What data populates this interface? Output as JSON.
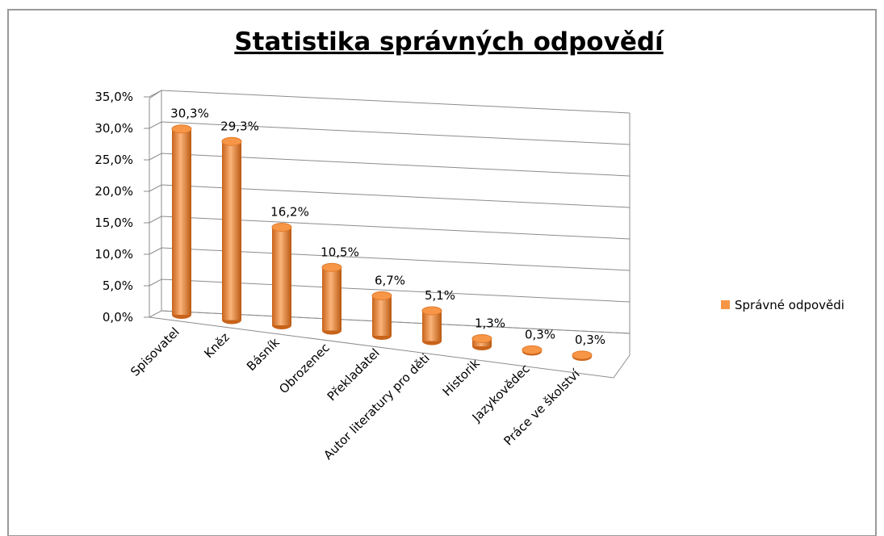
{
  "chart_data": {
    "type": "bar3d",
    "title": "Statistika správných odpovědí",
    "categories": [
      "Spisovatel",
      "Kněz",
      "Básník",
      "Obrozenec",
      "Překladatel",
      "Autor literatury pro děti",
      "Historik",
      "Jazykovědec",
      "Práce ve školství"
    ],
    "series": [
      {
        "name": "Správné odpovědi",
        "color": "#f79646",
        "values": [
          30.3,
          29.3,
          16.2,
          10.5,
          6.7,
          5.1,
          1.3,
          0.3,
          0.3
        ],
        "value_labels": [
          "30,3%",
          "29,3%",
          "16,2%",
          "10,5%",
          "6,7%",
          "5,1%",
          "1,3%",
          "0,3%",
          "0,3%"
        ]
      }
    ],
    "ylim": [
      0,
      35
    ],
    "yticks": [
      {
        "value": 0,
        "label": "0,0%"
      },
      {
        "value": 5,
        "label": "5,0%"
      },
      {
        "value": 10,
        "label": "10,0%"
      },
      {
        "value": 15,
        "label": "15,0%"
      },
      {
        "value": 20,
        "label": "20,0%"
      },
      {
        "value": 25,
        "label": "25,0%"
      },
      {
        "value": 30,
        "label": "30,0%"
      },
      {
        "value": 35,
        "label": "35,0%"
      }
    ],
    "grid": true,
    "legend": "right"
  }
}
